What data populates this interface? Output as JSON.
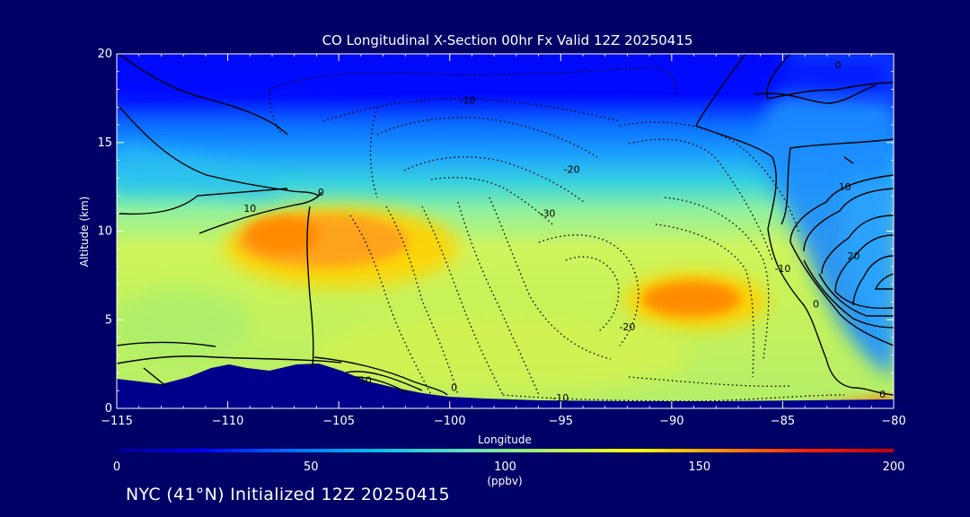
{
  "chart_data": {
    "type": "heatmap",
    "title": "CO Longitudinal X-Section 00hr  Fx Valid 12Z 20250415",
    "xlabel": "Longitude",
    "ylabel": "Altitude (km)",
    "xlim": [
      -115,
      -80
    ],
    "ylim": [
      0,
      20
    ],
    "x_ticks": [
      -115,
      -110,
      -105,
      -100,
      -95,
      -90,
      -85,
      -80
    ],
    "x_tick_labels": [
      "−115",
      "−110",
      "−105",
      "−100",
      "−95",
      "−90",
      "−85",
      "−80"
    ],
    "y_ticks": [
      0,
      5,
      10,
      15,
      20
    ],
    "y_tick_labels": [
      "0",
      "5",
      "10",
      "15",
      "20"
    ],
    "colorbar": {
      "unit": "(ppbv)",
      "range": [
        0,
        200
      ],
      "ticks": [
        0,
        50,
        100,
        150,
        200
      ],
      "tick_labels": [
        "0",
        "50",
        "100",
        "150",
        "200"
      ],
      "colors": [
        "#00008c",
        "#0000ff",
        "#006eff",
        "#00bfe8",
        "#60e0c0",
        "#b0f060",
        "#ffff00",
        "#ff9000",
        "#ff2000",
        "#c00000"
      ]
    },
    "field_max_regions": [
      {
        "lon": -106,
        "alt": 10,
        "value": 145
      },
      {
        "lon": -89,
        "alt": 6.3,
        "value": 155
      }
    ],
    "overlay_contour_labels": [
      {
        "text": "10",
        "lon": -109,
        "alt": 11.1
      },
      {
        "text": "0",
        "lon": -105.8,
        "alt": 12
      },
      {
        "text": "-10",
        "lon": -99.2,
        "alt": 17.2
      },
      {
        "text": "-20",
        "lon": -94.5,
        "alt": 13.3
      },
      {
        "text": "-30",
        "lon": -95.6,
        "alt": 10.8
      },
      {
        "text": "-20",
        "lon": -92.0,
        "alt": 4.4
      },
      {
        "text": "-10",
        "lon": -85.0,
        "alt": 7.7
      },
      {
        "text": "-10",
        "lon": -95.0,
        "alt": 0.4
      },
      {
        "text": "0",
        "lon": -99.8,
        "alt": 1.0
      },
      {
        "text": "10",
        "lon": -103.8,
        "alt": 1.4
      },
      {
        "text": "0",
        "lon": -82.5,
        "alt": 19.2
      },
      {
        "text": "10",
        "lon": -82.2,
        "alt": 12.3
      },
      {
        "text": "20",
        "lon": -81.8,
        "alt": 8.4
      },
      {
        "text": "0",
        "lon": -83.5,
        "alt": 5.7
      },
      {
        "text": "0",
        "lon": -80.5,
        "alt": 0.6
      }
    ]
  },
  "footer": "NYC (41°N) Initialized 12Z 20250415"
}
